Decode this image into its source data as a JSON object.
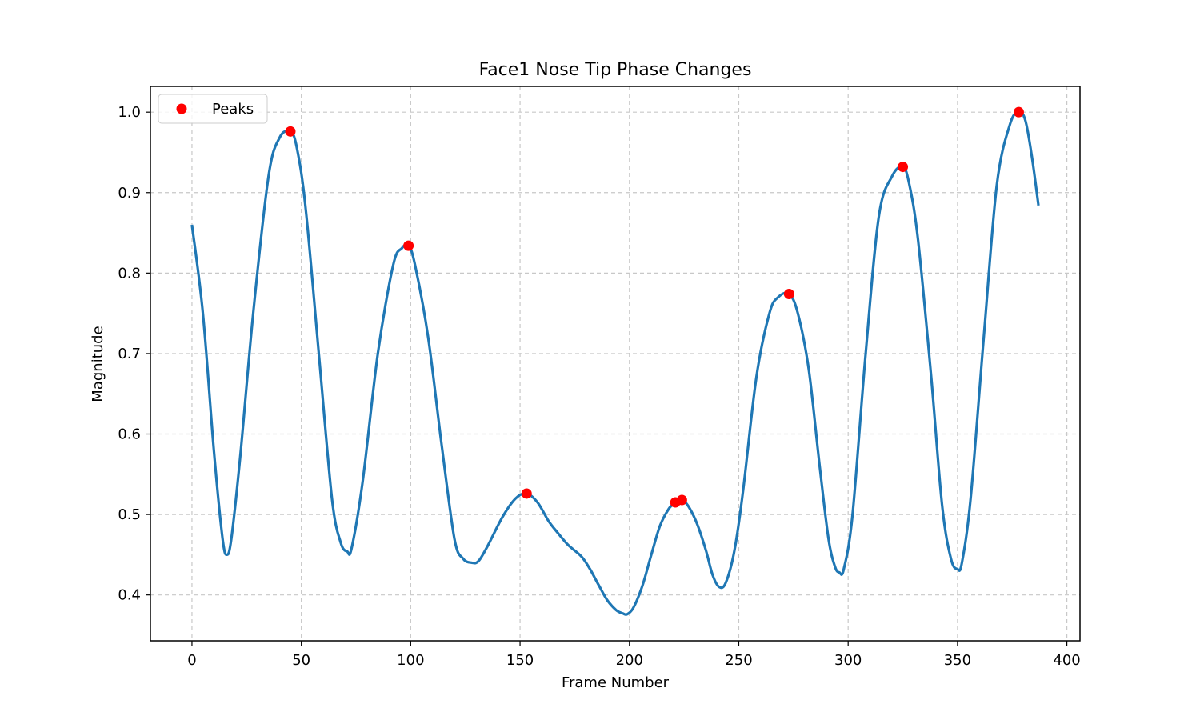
{
  "chart_data": {
    "type": "line",
    "title": "Face1 Nose Tip Phase Changes",
    "xlabel": "Frame Number",
    "ylabel": "Magnitude",
    "xlim": [
      -19,
      406
    ],
    "ylim": [
      0.343,
      1.032
    ],
    "xticks": [
      0,
      50,
      100,
      150,
      200,
      250,
      300,
      350,
      400
    ],
    "yticks": [
      0.4,
      0.5,
      0.6,
      0.7,
      0.8,
      0.9,
      1.0
    ],
    "xtick_labels": [
      "0",
      "50",
      "100",
      "150",
      "200",
      "250",
      "300",
      "350",
      "400"
    ],
    "ytick_labels": [
      "0.4",
      "0.5",
      "0.6",
      "0.7",
      "0.8",
      "0.9",
      "1.0"
    ],
    "grid": true,
    "legend": {
      "position": "upper-left",
      "entries": [
        {
          "label": "Peaks",
          "color": "#ff0000",
          "marker": "circle"
        }
      ]
    },
    "colors": {
      "line": "#1f77b4",
      "peaks": "#ff0000",
      "grid": "#c8c8c8"
    },
    "series": [
      {
        "kind": "line",
        "x": [
          0,
          5,
          10,
          14,
          16,
          18,
          22,
          28,
          35,
          40,
          45,
          48,
          52,
          58,
          64,
          68,
          71,
          73,
          78,
          85,
          92,
          96,
          99,
          102,
          108,
          114,
          120,
          124,
          128,
          131,
          135,
          142,
          148,
          153,
          158,
          163,
          167,
          172,
          178,
          182,
          186,
          190,
          194,
          197,
          199,
          202,
          206,
          210,
          214,
          218,
          221,
          224,
          227,
          231,
          235,
          238,
          241,
          244,
          248,
          252,
          258,
          264,
          268,
          273,
          277,
          282,
          287,
          291,
          294,
          296,
          298,
          302,
          308,
          314,
          320,
          325,
          328,
          332,
          338,
          343,
          347,
          350,
          352,
          356,
          362,
          368,
          374,
          378,
          381,
          384,
          387
        ],
        "y": [
          0.86,
          0.75,
          0.58,
          0.47,
          0.45,
          0.47,
          0.57,
          0.75,
          0.92,
          0.968,
          0.976,
          0.955,
          0.88,
          0.7,
          0.52,
          0.465,
          0.454,
          0.458,
          0.54,
          0.7,
          0.81,
          0.831,
          0.834,
          0.81,
          0.72,
          0.59,
          0.47,
          0.445,
          0.44,
          0.442,
          0.46,
          0.497,
          0.52,
          0.526,
          0.515,
          0.492,
          0.478,
          0.462,
          0.448,
          0.432,
          0.412,
          0.393,
          0.381,
          0.377,
          0.376,
          0.385,
          0.412,
          0.45,
          0.486,
          0.507,
          0.515,
          0.518,
          0.51,
          0.488,
          0.455,
          0.425,
          0.41,
          0.415,
          0.455,
          0.53,
          0.67,
          0.75,
          0.77,
          0.774,
          0.75,
          0.68,
          0.56,
          0.47,
          0.435,
          0.428,
          0.432,
          0.5,
          0.7,
          0.87,
          0.92,
          0.932,
          0.91,
          0.84,
          0.67,
          0.51,
          0.445,
          0.432,
          0.44,
          0.52,
          0.72,
          0.91,
          0.985,
          1.0,
          0.99,
          0.945,
          0.884
        ],
        "color": "#1f77b4"
      },
      {
        "kind": "scatter",
        "name": "Peaks",
        "x": [
          45,
          99,
          153,
          221,
          224,
          273,
          325,
          378
        ],
        "y": [
          0.976,
          0.834,
          0.526,
          0.515,
          0.518,
          0.774,
          0.932,
          1.0
        ],
        "color": "#ff0000"
      }
    ]
  }
}
